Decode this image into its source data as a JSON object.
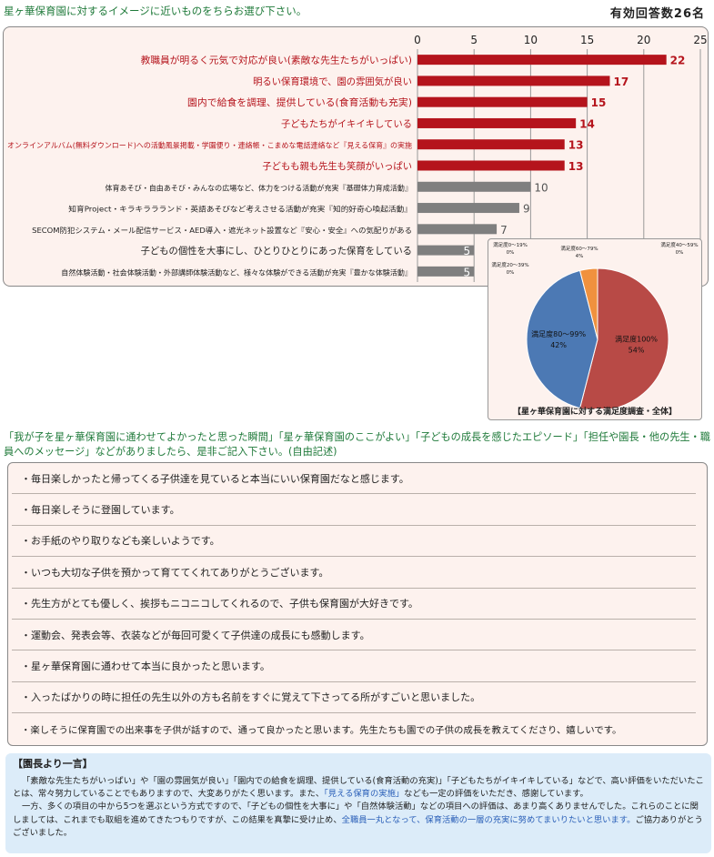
{
  "header": {
    "question": "星ヶ華保育園に対するイメージに近いものをちらお選び下さい。",
    "respondents": "有効回答数26名"
  },
  "chart_data": [
    {
      "type": "bar",
      "orientation": "horizontal",
      "xlim": [
        0,
        25
      ],
      "xticks": [
        "0",
        "5",
        "10",
        "15",
        "20",
        "25"
      ],
      "grid": true,
      "categories": [
        "教職員が明るく元気で対応が良い(素敵な先生たちがいっぱい)",
        "明るい保育環境で、園の雰囲気が良い",
        "園内で給食を調理、提供している(食育活動も充実)",
        "子どもたちがイキイキしている",
        "オンラインアルバム(無料ダウンロード)への活動風景掲載・学園便り・連絡帳・こまめな電話連絡など『見える保育』の実施",
        "子どもも親も先生も笑顔がいっぱい",
        "体育あそび・自由あそび・みんなの広場など、体力をつける活動が充実『基礎体力育成活動』",
        "知育Project・キラキララランド・英語あそびなど考えさせる活動が充実『知的好奇心喚起活動』",
        "SECOM防犯システム・メール配信サービス・AED導入・遮光ネット設置など『安心・安全』への気配りがある",
        "子どもの個性を大事にし、ひとりひとりにあった保育をしている",
        "自然体験活動・社会体験活動・外部講師体験活動など、様々な体験ができる活動が充実『豊かな体験活動』"
      ],
      "values": [
        22,
        17,
        15,
        14,
        13,
        13,
        10,
        9,
        7,
        5,
        5
      ],
      "highlighted": [
        true,
        true,
        true,
        true,
        true,
        true,
        false,
        false,
        false,
        false,
        false
      ],
      "colors": {
        "highlight": "#b5141c",
        "normal": "#7f7f7f",
        "highlight_label": "#b5141c",
        "normal_label": "#222222"
      }
    },
    {
      "type": "pie",
      "title": "【星ヶ華保育園に対する満足度調査・全体】",
      "slices": [
        {
          "label": "満足度100%",
          "value": 54,
          "value_label": "54%",
          "color": "#b84a46"
        },
        {
          "label": "満足度80〜99%",
          "value": 42,
          "value_label": "42%",
          "color": "#4c79b4"
        },
        {
          "label": "満足度60〜79%",
          "value": 4,
          "value_label": "4%",
          "color": "#f0913e"
        },
        {
          "label": "満足度40〜59%",
          "value": 0,
          "value_label": "0%",
          "color": "#9bbb59"
        },
        {
          "label": "満足度20〜39%",
          "value": 0,
          "value_label": "0%",
          "color": "#8064a2"
        },
        {
          "label": "満足度0〜19%",
          "value": 0,
          "value_label": "0%",
          "color": "#4bacc6"
        }
      ]
    }
  ],
  "prompt": "「我が子を星ヶ華保育園に通わせてよかったと思った瞬間」「星ヶ華保育園のここがよい」「子どもの成長を感じたエピソード」「担任や園長・他の先生・職員へのメッセージ」などがありましたら、是非ご記入下さい。(自由記述)",
  "comments": [
    "・毎日楽しかったと帰ってくる子供達を見ていると本当にいい保育園だなと感じます。",
    "・毎日楽しそうに登園しています。",
    "・お手紙のやり取りなども楽しいようです。",
    "・いつも大切な子供を預かって育ててくれてありがとうございます。",
    "・先生方がとても優しく、挨拶もニコニコしてくれるので、子供も保育園が大好きです。",
    "・運動会、発表会等、衣装などが毎回可愛くて子供達の成長にも感動します。",
    "・星ヶ華保育園に通わせて本当に良かったと思います。",
    "・入ったばかりの時に担任の先生以外の方も名前をすぐに覚えて下さってる所がすごいと思いました。",
    "・楽しそうに保育園での出来事を子供が話すので、通って良かったと思います。先生たちも園での子供の成長を教えてくださり、嬉しいです。"
  ],
  "director": {
    "title": "【園長より一言】",
    "p1_a": "「素敵な先生たちがいっぱい」や「園の雰囲気が良い」「園内での給食を調理、提供している(食育活動の充実)」「子どもたちがイキイキしている」などで、高い評価をいただいたことは、常々努力していることでもありますので、大変ありがたく思います。また、",
    "p1_b": "「見える保育の実施」",
    "p1_c": "なども一定の評価をいただき、感謝しています。",
    "p2_a": "一方、多くの項目の中から5つを選ぶという方式ですので、「子どもの個性を大事に」や「自然体験活動」などの項目への評価は、あまり高くありませんでした。これらのことに関しましては、これまでも取組を進めてきたつもりですが、この結果を真摯に受け止め、",
    "p2_b": "全職員一丸となって、保育活動の一層の充実に努めてまいりたいと思います。",
    "p2_c": "ご協力ありがとうございました。"
  }
}
